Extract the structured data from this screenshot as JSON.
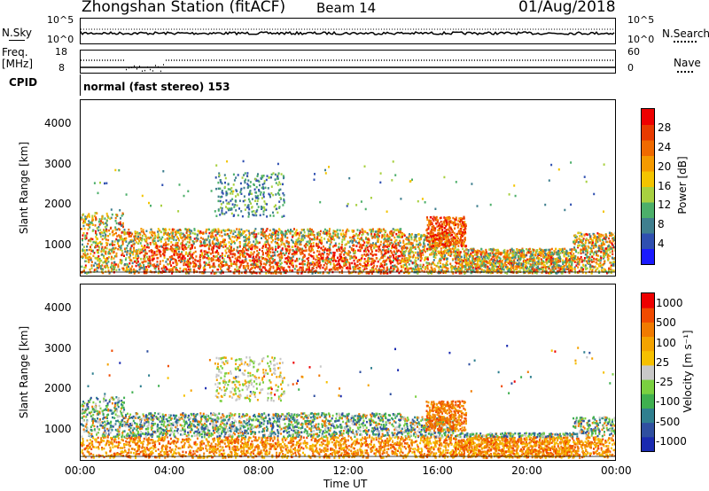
{
  "header": {
    "station": "Zhongshan Station (fitACF)",
    "beam": "Beam 14",
    "date": "01/Aug/2018"
  },
  "strips": {
    "nsky_label": "N.Sky",
    "nsky_ticks": [
      "10^5",
      "10^0"
    ],
    "nsearch_label": "N.Search",
    "nsearch_ticks": [
      "10^5",
      "10^0"
    ],
    "freq_label_1": "Freq.",
    "freq_label_2": "[MHz]",
    "freq_ticks": [
      "18",
      "8"
    ],
    "nave_label": "Nave",
    "nave_ticks": [
      "60",
      "0"
    ],
    "cpid_label": "CPID",
    "cpid_value": "normal (fast stereo) 153"
  },
  "colors": {
    "power_scale": [
      "#1a1aff",
      "#2f4fb0",
      "#3f7f8f",
      "#4caf6a",
      "#a8d040",
      "#f3c400",
      "#f59a00",
      "#f06a00",
      "#e83a00",
      "#ee0000"
    ],
    "velocity_scale": [
      "#ee0000",
      "#f04a00",
      "#f07a00",
      "#f4a300",
      "#f6c000",
      "#c8c8c8",
      "#7ad040",
      "#3faf4f",
      "#2f7f8f",
      "#2f4fa0",
      "#1a2ab0"
    ]
  },
  "chart_data": [
    {
      "type": "heatmap",
      "name": "power",
      "ylabel": "Slant Range [km]",
      "yticks": [
        "4000",
        "3000",
        "2000",
        "1000"
      ],
      "ylim": [
        200,
        4600
      ],
      "colorbar_label": "Power [dB]",
      "colorbar_ticks": [
        "28",
        "24",
        "20",
        "16",
        "12",
        "8",
        "4"
      ],
      "colorbar_range": [
        0,
        32
      ]
    },
    {
      "type": "heatmap",
      "name": "velocity",
      "ylabel": "Slant Range [km]",
      "yticks": [
        "4000",
        "3000",
        "2000",
        "1000"
      ],
      "ylim": [
        200,
        4600
      ],
      "colorbar_label": "Velocity [m s⁻¹]",
      "colorbar_ticks": [
        "1000",
        "500",
        "100",
        "25",
        "-25",
        "-100",
        "-500",
        "-1000"
      ]
    }
  ],
  "xaxis": {
    "label": "Time UT",
    "ticks": [
      "00:00",
      "04:00",
      "08:00",
      "12:00",
      "16:00",
      "20:00",
      "00:00"
    ]
  }
}
